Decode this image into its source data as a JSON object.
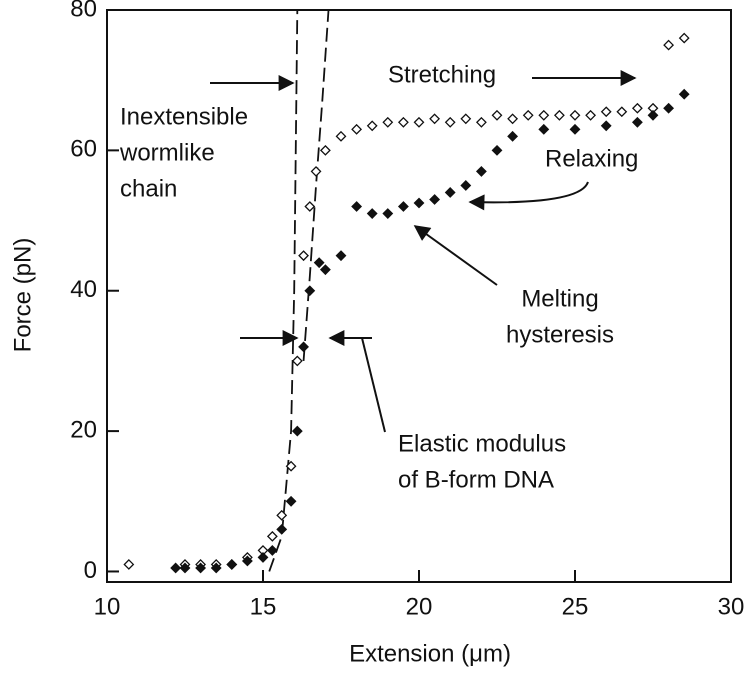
{
  "chart_data": {
    "type": "scatter",
    "xlabel": "Extension (μm)",
    "ylabel": "Force (pN)",
    "xlim": [
      10,
      30
    ],
    "ylim": [
      -1.5,
      80
    ],
    "xticks": [
      10,
      15,
      20,
      25,
      30
    ],
    "yticks": [
      0,
      20,
      40,
      60,
      80
    ],
    "series": [
      {
        "name": "Stretching",
        "color": "#111111",
        "marker": "open-diamond",
        "x": [
          10.7,
          12.5,
          13,
          13.5,
          14,
          14.5,
          15,
          15.3,
          15.6,
          15.9,
          16.1,
          16.3,
          16.5,
          16.7,
          17,
          17.5,
          18,
          18.5,
          19,
          19.5,
          20,
          20.5,
          21,
          21.5,
          22,
          22.5,
          23,
          23.5,
          24,
          24.5,
          25,
          25.5,
          26,
          26.5,
          27,
          27.5,
          28,
          28.5
        ],
        "values": [
          1,
          1,
          1,
          1,
          1,
          2,
          3,
          5,
          8,
          15,
          30,
          45,
          52,
          57,
          60,
          62,
          63,
          63.5,
          64,
          64,
          64,
          64.5,
          64,
          64.5,
          64,
          65,
          64.5,
          65,
          65,
          65,
          65,
          65,
          65.5,
          65.5,
          66,
          66,
          75,
          76
        ]
      },
      {
        "name": "Relaxing",
        "color": "#111111",
        "marker": "filled-diamond",
        "x": [
          28.5,
          28,
          27.5,
          27,
          26,
          25,
          24,
          23,
          22.5,
          22,
          21.5,
          21,
          20.5,
          20,
          19.5,
          19,
          18.5,
          18,
          17.5,
          17,
          16.8,
          16.5,
          16.3,
          16.1,
          15.9,
          15.6,
          15.3,
          15,
          14.5,
          14,
          13.5,
          13,
          12.5,
          12.2
        ],
        "values": [
          68,
          66,
          65,
          64,
          63.5,
          63,
          63,
          62,
          60,
          57,
          55,
          54,
          53,
          52.5,
          52,
          51,
          51,
          52,
          45,
          43,
          44,
          40,
          32,
          20,
          10,
          6,
          3,
          2,
          1.5,
          1,
          0.5,
          0.5,
          0.5,
          0.5
        ]
      }
    ],
    "curves": [
      {
        "color": "#111111",
        "x": [
          15.2,
          15.6,
          15.9,
          16.0,
          16.05,
          16.1
        ],
        "values": [
          0,
          5,
          20,
          40,
          60,
          80
        ]
      },
      {
        "color": "#111111",
        "x": [
          16.3,
          16.5,
          16.7,
          16.9,
          17.1
        ],
        "values": [
          30,
          42,
          55,
          67,
          80
        ]
      }
    ],
    "annotations": [
      {
        "lines": [
          "Inextensible",
          "wormlike",
          "chain"
        ]
      },
      {
        "lines": [
          "Melting",
          "hysteresis"
        ]
      },
      {
        "lines": [
          "Elastic modulus",
          "of B-form DNA"
        ]
      }
    ]
  }
}
